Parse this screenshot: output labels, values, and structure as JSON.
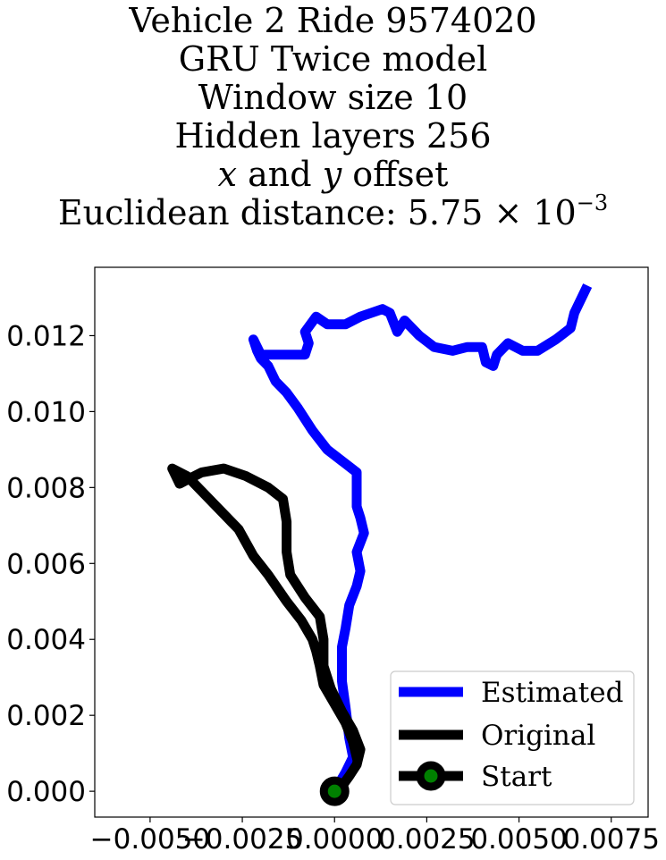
{
  "title_lines": {
    "line1": "Vehicle 2 Ride 9574020",
    "line2": "GRU Twice model",
    "line3": "Window size 10",
    "line4": "Hidden layers 256",
    "line5_var_x": "x",
    "line5_and": " and ",
    "line5_var_y": "y",
    "line5_rest": " offset",
    "line6_prefix": "Euclidean distance: ",
    "line6_mantissa": "5.75 × 10",
    "line6_exponent": "−3"
  },
  "chart_data": {
    "type": "line",
    "xlim": [
      -0.0065,
      0.0085
    ],
    "ylim": [
      -0.00068,
      0.0138
    ],
    "grid": false,
    "legend_position": "lower-right",
    "x_ticks": [
      -0.005,
      -0.0025,
      0.0,
      0.0025,
      0.005,
      0.0075
    ],
    "x_tick_labels": [
      "−0.0050",
      "−0.0025",
      "0.0000",
      "0.0025",
      "0.0050",
      "0.0075"
    ],
    "y_ticks": [
      0.0,
      0.002,
      0.004,
      0.006,
      0.008,
      0.01,
      0.012
    ],
    "y_tick_labels": [
      "0.000",
      "0.002",
      "0.004",
      "0.006",
      "0.008",
      "0.010",
      "0.012"
    ],
    "series": [
      {
        "name": "Estimated",
        "color": "#0000ff",
        "points": [
          [
            0.0,
            0.0
          ],
          [
            0.0003,
            0.0005
          ],
          [
            0.0005,
            0.0009
          ],
          [
            0.0004,
            0.0014
          ],
          [
            0.0003,
            0.0022
          ],
          [
            0.0002,
            0.0029
          ],
          [
            0.0002,
            0.0033
          ],
          [
            0.0002,
            0.0038
          ],
          [
            0.0003,
            0.0043
          ],
          [
            0.0004,
            0.0049
          ],
          [
            0.0006,
            0.0054
          ],
          [
            0.0007,
            0.0058
          ],
          [
            0.0006,
            0.0063
          ],
          [
            0.0008,
            0.0068
          ],
          [
            0.0007,
            0.0072
          ],
          [
            0.0006,
            0.0075
          ],
          [
            0.0006,
            0.008
          ],
          [
            0.0006,
            0.0084
          ],
          [
            0.0002,
            0.0087
          ],
          [
            -0.0002,
            0.009
          ],
          [
            -0.0006,
            0.0095
          ],
          [
            -0.001,
            0.0101
          ],
          [
            -0.0013,
            0.0105
          ],
          [
            -0.0016,
            0.0108
          ],
          [
            -0.0018,
            0.0112
          ],
          [
            -0.002,
            0.0114
          ],
          [
            -0.0021,
            0.0116
          ],
          [
            -0.0022,
            0.0119
          ],
          [
            -0.002,
            0.0115
          ],
          [
            -0.0016,
            0.0115
          ],
          [
            -0.0013,
            0.0115
          ],
          [
            -0.0008,
            0.0115
          ],
          [
            -0.0007,
            0.0118
          ],
          [
            -0.0008,
            0.0121
          ],
          [
            -0.0005,
            0.0125
          ],
          [
            -0.0002,
            0.0123
          ],
          [
            0.0003,
            0.0123
          ],
          [
            0.0007,
            0.0125
          ],
          [
            0.0013,
            0.0127
          ],
          [
            0.0015,
            0.0126
          ],
          [
            0.0017,
            0.0121
          ],
          [
            0.0019,
            0.0124
          ],
          [
            0.0023,
            0.012
          ],
          [
            0.0027,
            0.0117
          ],
          [
            0.0032,
            0.0116
          ],
          [
            0.0036,
            0.0117
          ],
          [
            0.004,
            0.0117
          ],
          [
            0.0041,
            0.0113
          ],
          [
            0.0043,
            0.0112
          ],
          [
            0.0044,
            0.0115
          ],
          [
            0.0047,
            0.0118
          ],
          [
            0.0051,
            0.0116
          ],
          [
            0.0055,
            0.0116
          ],
          [
            0.006,
            0.0119
          ],
          [
            0.0064,
            0.0122
          ],
          [
            0.0065,
            0.0126
          ],
          [
            0.0068,
            0.0132
          ]
        ]
      },
      {
        "name": "Original",
        "color": "#000000",
        "points": [
          [
            0.0006,
            0.0009
          ],
          [
            0.0005,
            0.0013
          ],
          [
            0.0003,
            0.0018
          ],
          [
            0.0,
            0.0023
          ],
          [
            -0.0003,
            0.0028
          ],
          [
            -0.0004,
            0.0033
          ],
          [
            -0.0005,
            0.0037
          ],
          [
            -0.0006,
            0.004
          ],
          [
            -0.0009,
            0.0045
          ],
          [
            -0.0013,
            0.005
          ],
          [
            -0.0018,
            0.0057
          ],
          [
            -0.0022,
            0.0062
          ],
          [
            -0.0026,
            0.0069
          ],
          [
            -0.003,
            0.0073
          ],
          [
            -0.0035,
            0.0078
          ],
          [
            -0.004,
            0.0083
          ],
          [
            -0.0044,
            0.0085
          ],
          [
            -0.0043,
            0.0083
          ],
          [
            -0.0042,
            0.0081
          ],
          [
            -0.004,
            0.0082
          ],
          [
            -0.0036,
            0.0084
          ],
          [
            -0.003,
            0.0085
          ],
          [
            -0.0024,
            0.0083
          ],
          [
            -0.0018,
            0.008
          ],
          [
            -0.0014,
            0.0077
          ],
          [
            -0.0013,
            0.0071
          ],
          [
            -0.0013,
            0.0063
          ],
          [
            -0.0012,
            0.0057
          ],
          [
            -0.0008,
            0.0051
          ],
          [
            -0.0004,
            0.0046
          ],
          [
            -0.0003,
            0.004
          ],
          [
            -0.0003,
            0.0033
          ],
          [
            -0.0001,
            0.0027
          ],
          [
            0.0002,
            0.0021
          ],
          [
            0.0005,
            0.0016
          ],
          [
            0.0007,
            0.0011
          ],
          [
            0.0006,
            0.0007
          ],
          [
            0.0004,
            0.0004
          ],
          [
            0.0001,
            0.0
          ]
        ]
      },
      {
        "name": "Start",
        "color": "#000000",
        "marker_color": "#008000",
        "points": [
          [
            0.0,
            0.0
          ]
        ]
      }
    ]
  }
}
